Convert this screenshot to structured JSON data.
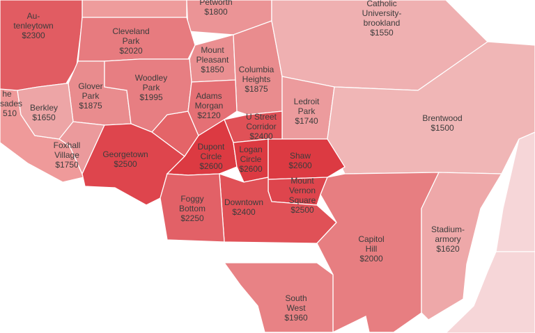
{
  "chart_data": {
    "type": "choropleth",
    "color_low": "#f0b6b6",
    "color_high": "#dc3a42",
    "regions": [
      {
        "name": [
          "Au-",
          "tenleytown"
        ],
        "value": 2300,
        "value_label": "$2300"
      },
      {
        "name": [
          "Petworth"
        ],
        "value": 1800,
        "value_label": "$1800"
      },
      {
        "name": [
          "Cleveland",
          "Park"
        ],
        "value": 2020,
        "value_label": "$2020"
      },
      {
        "name": [
          "Mount",
          "Pleasant"
        ],
        "value": 1850,
        "value_label": "$1850"
      },
      {
        "name": [
          "Columbia",
          "Heights"
        ],
        "value": 1875,
        "value_label": "$1875"
      },
      {
        "name": [
          "Catholic",
          "University-",
          "brookland"
        ],
        "value": 1550,
        "value_label": "$1550"
      },
      {
        "name": [
          "Glover",
          "Park"
        ],
        "value": 1875,
        "value_label": "$1875"
      },
      {
        "name": [
          "Woodley",
          "Park"
        ],
        "value": 1995,
        "value_label": "$1995"
      },
      {
        "name": [
          "Adams",
          "Morgan"
        ],
        "value": 2120,
        "value_label": "$2120"
      },
      {
        "name": [
          "Berkley"
        ],
        "value": 1650,
        "value_label": "$1650"
      },
      {
        "name": [
          "Foxhall",
          "Village"
        ],
        "value": 1750,
        "value_label": "$1750"
      },
      {
        "name": [
          "Georgetown"
        ],
        "value": 2500,
        "value_label": "$2500"
      },
      {
        "name": [
          "Ledroit",
          "Park"
        ],
        "value": 1740,
        "value_label": "$1740"
      },
      {
        "name": [
          "Brentwood"
        ],
        "value": 1500,
        "value_label": "$1500"
      },
      {
        "name": [
          "U Street",
          "Corridor"
        ],
        "value": 2400,
        "value_label": "$2400"
      },
      {
        "name": [
          "Dupont",
          "Circle"
        ],
        "value": 2600,
        "value_label": "$2600"
      },
      {
        "name": [
          "Logan",
          "Circle"
        ],
        "value": 2600,
        "value_label": "$2600"
      },
      {
        "name": [
          "Shaw"
        ],
        "value": 2600,
        "value_label": "$2600"
      },
      {
        "name": [
          "Mount",
          "Vernon",
          "Square"
        ],
        "value": 2500,
        "value_label": "$2500"
      },
      {
        "name": [
          "Downtown"
        ],
        "value": 2400,
        "value_label": "$2400"
      },
      {
        "name": [
          "Foggy",
          "Bottom"
        ],
        "value": 2250,
        "value_label": "$2250"
      },
      {
        "name": [
          "Capitol",
          "Hill"
        ],
        "value": 2000,
        "value_label": "$2000"
      },
      {
        "name": [
          "Stadium-",
          "armory"
        ],
        "value": 1620,
        "value_label": "$1620"
      },
      {
        "name": [
          "South",
          "West"
        ],
        "value": 1960,
        "value_label": "$1960"
      }
    ],
    "partial_labels": [
      "he",
      "sades",
      "510"
    ]
  }
}
